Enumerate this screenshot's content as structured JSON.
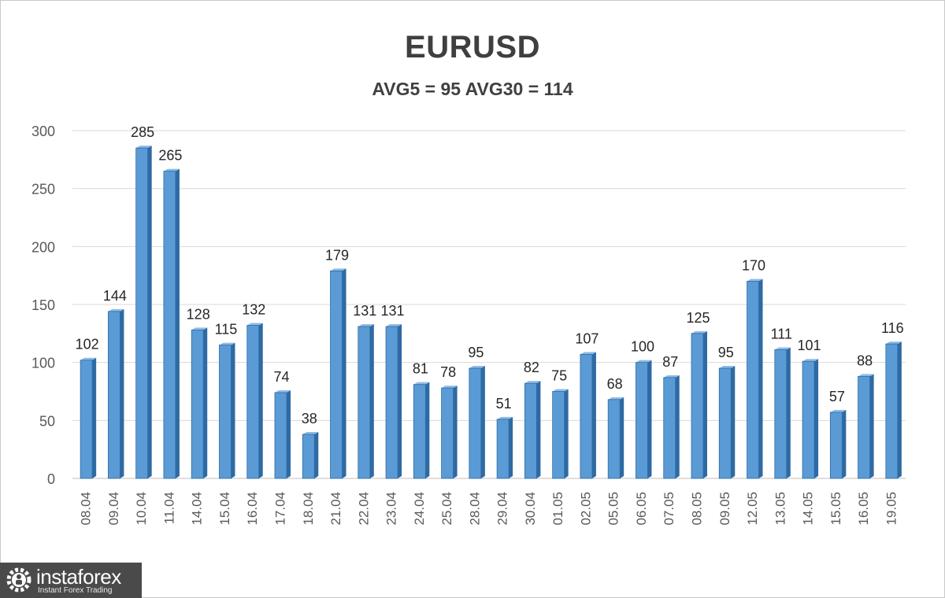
{
  "chart_data": {
    "type": "bar",
    "title": "EURUSD",
    "subtitle": "AVG5 = 95 AVG30 = 114",
    "categories": [
      "08.04",
      "09.04",
      "10.04",
      "11.04",
      "14.04",
      "15.04",
      "16.04",
      "17.04",
      "18.04",
      "21.04",
      "22.04",
      "23.04",
      "24.04",
      "25.04",
      "28.04",
      "29.04",
      "30.04",
      "01.05",
      "02.05",
      "05.05",
      "06.05",
      "07.05",
      "08.05",
      "09.05",
      "12.05",
      "13.05",
      "14.05",
      "15.05",
      "16.05",
      "19.05"
    ],
    "values": [
      102,
      144,
      285,
      265,
      128,
      115,
      132,
      74,
      38,
      179,
      131,
      131,
      81,
      78,
      95,
      51,
      82,
      75,
      107,
      68,
      100,
      87,
      125,
      95,
      170,
      111,
      101,
      57,
      88,
      116
    ],
    "ylim": [
      0,
      300
    ],
    "yticks": [
      0,
      50,
      100,
      150,
      200,
      250,
      300
    ],
    "grid": true,
    "legend": "none",
    "bar_color": "#5b9bd5",
    "bar_edge_color": "#2e6aa3"
  },
  "logo": {
    "name": "instaforex",
    "tagline": "Instant Forex Trading",
    "icon": "gear-people-icon"
  }
}
